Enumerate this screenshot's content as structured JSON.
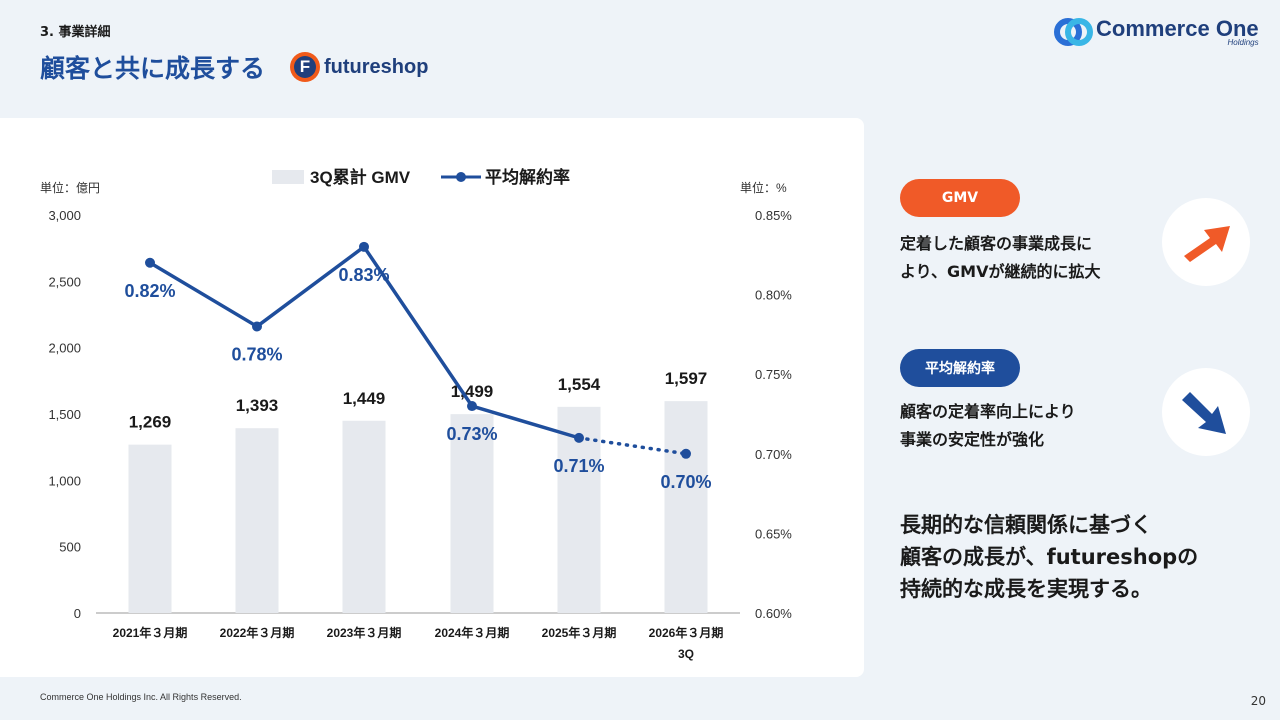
{
  "header": {
    "section": "3. 事業詳細",
    "title": "顧客と共に成長する",
    "product_logo_mark": "F",
    "product_logo_name": "futureshop",
    "corp_logo_name": "Commerce One",
    "corp_logo_sub": "Holdings"
  },
  "colors": {
    "accent_blue": "#1f4e9c",
    "accent_orange": "#f05a28",
    "bar": "#e6e9ee"
  },
  "chart_data": {
    "type": "bar",
    "legend": [
      "3Q累計 GMV",
      "平均解約率"
    ],
    "left_unit": "単位：億円",
    "right_unit": "単位：%",
    "categories": [
      "2021年３月期",
      "2022年３月期",
      "2023年３月期",
      "2024年３月期",
      "2025年３月期",
      "2026年３月期"
    ],
    "category_sublabels": [
      "",
      "",
      "",
      "",
      "",
      "3Q"
    ],
    "series": [
      {
        "name": "3Q累計 GMV",
        "type": "bar",
        "axis": "left",
        "values": [
          1269,
          1393,
          1449,
          1499,
          1554,
          1597
        ],
        "labels": [
          "1,269",
          "1,393",
          "1,449",
          "1,499",
          "1,554",
          "1,597"
        ]
      },
      {
        "name": "平均解約率",
        "type": "line",
        "axis": "right",
        "values": [
          0.82,
          0.78,
          0.83,
          0.73,
          0.71,
          0.7
        ],
        "labels": [
          "0.82%",
          "0.78%",
          "0.83%",
          "0.73%",
          "0.71%",
          "0.70%"
        ],
        "dotted_last_segment": true
      }
    ],
    "left_axis": {
      "min": 0,
      "max": 3000,
      "ticks": [
        0,
        500,
        1000,
        1500,
        2000,
        2500,
        3000
      ],
      "tick_labels": [
        "0",
        "500",
        "1,000",
        "1,500",
        "2,000",
        "2,500",
        "3,000"
      ]
    },
    "right_axis": {
      "min": 0.6,
      "max": 0.85,
      "ticks": [
        0.6,
        0.65,
        0.7,
        0.75,
        0.8,
        0.85
      ],
      "tick_labels": [
        "0.60%",
        "0.65%",
        "0.70%",
        "0.75%",
        "0.80%",
        "0.85%"
      ]
    },
    "grid": false,
    "legend_position": "top"
  },
  "side": {
    "gmv_pill": "GMV",
    "gmv_desc": "定着した顧客の事業成長に\nより、GMVが継続的に拡大",
    "gmv_icon": "arrow-up-right-icon",
    "churn_pill": "平均解約率",
    "churn_desc": "顧客の定着率向上により\n事業の安定性が強化",
    "churn_icon": "arrow-down-right-icon",
    "summary": "長期的な信頼関係に基づく\n顧客の成長が、futureshopの\n持続的な成長を実現する。"
  },
  "footer": {
    "copyright": "Commerce One Holdings Inc. All Rights Reserved.",
    "page": "20"
  }
}
